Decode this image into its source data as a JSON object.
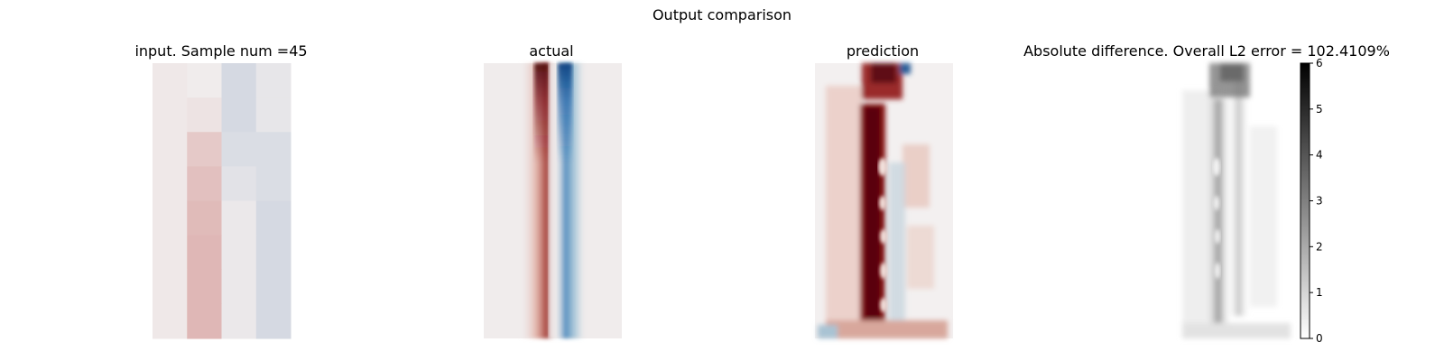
{
  "figure": {
    "suptitle": "Output comparison"
  },
  "colors": {
    "neutral": "#f0ecec",
    "red_dark": "#5e0a12",
    "red_mid": "#b84a3a",
    "blue_dark": "#0b4f9e",
    "blue_mid": "#8fbad0",
    "gray_dark": "#1a1a1a"
  },
  "chart_data": [
    {
      "type": "heatmap",
      "title": "input. Sample num =45",
      "colormap": "diverging red-blue",
      "axes": "off",
      "grid": [
        [
          0.02,
          0.0,
          -0.15,
          -0.05
        ],
        [
          0.02,
          0.05,
          -0.15,
          -0.05
        ],
        [
          0.02,
          0.2,
          -0.12,
          -0.12
        ],
        [
          0.02,
          0.25,
          -0.08,
          -0.12
        ],
        [
          0.02,
          0.28,
          -0.03,
          -0.15
        ],
        [
          0.02,
          0.3,
          -0.03,
          -0.15
        ],
        [
          0.02,
          0.3,
          -0.03,
          -0.15
        ],
        [
          0.02,
          0.3,
          -0.03,
          -0.15
        ]
      ]
    },
    {
      "type": "heatmap",
      "title": "actual",
      "colormap": "diverging red-blue",
      "axes": "off",
      "description_note": null
    },
    {
      "type": "heatmap",
      "title": "prediction",
      "colormap": "diverging red-blue",
      "axes": "off"
    },
    {
      "type": "heatmap",
      "title": "Absolute difference. Overall L2 error = 102.4109%",
      "colormap": "gray_r",
      "axes": "off",
      "colorbar": {
        "ticks": [
          "0",
          "1",
          "2",
          "3",
          "4",
          "5",
          "6"
        ],
        "range": [
          0,
          6
        ]
      }
    }
  ]
}
